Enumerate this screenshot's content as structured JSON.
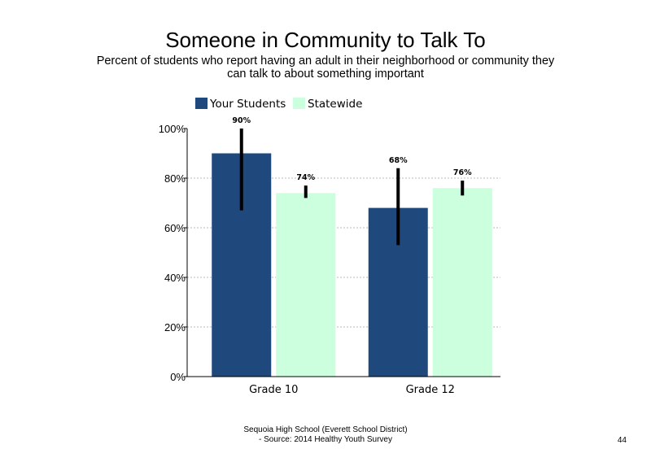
{
  "title": "Someone in Community to Talk To",
  "subtitle": "Percent of students who report having an adult in their neighborhood or community they can talk to about something important",
  "footer": {
    "line1": "Sequoia High School (Everett School District)",
    "line2": "- Source: 2014 Healthy Youth Survey"
  },
  "page_number": "44",
  "chart_data": {
    "type": "bar",
    "categories": [
      "Grade 10",
      "Grade 12"
    ],
    "series": [
      {
        "name": "Your Students",
        "values": [
          90,
          68
        ],
        "labels": [
          "90%",
          "68%"
        ],
        "error": [
          [
            67,
            100
          ],
          [
            53,
            84
          ]
        ],
        "color": "#1f497d"
      },
      {
        "name": "Statewide",
        "values": [
          74,
          76
        ],
        "labels": [
          "74%",
          "76%"
        ],
        "error": [
          [
            72,
            77
          ],
          [
            73,
            79
          ]
        ],
        "color": "#ccffdd"
      }
    ],
    "ylim": [
      0,
      100
    ],
    "yticks": [
      "0%",
      "20%",
      "40%",
      "60%",
      "80%",
      "100%"
    ],
    "grid": true,
    "legend": "top-left",
    "xlabel": "",
    "ylabel": ""
  }
}
